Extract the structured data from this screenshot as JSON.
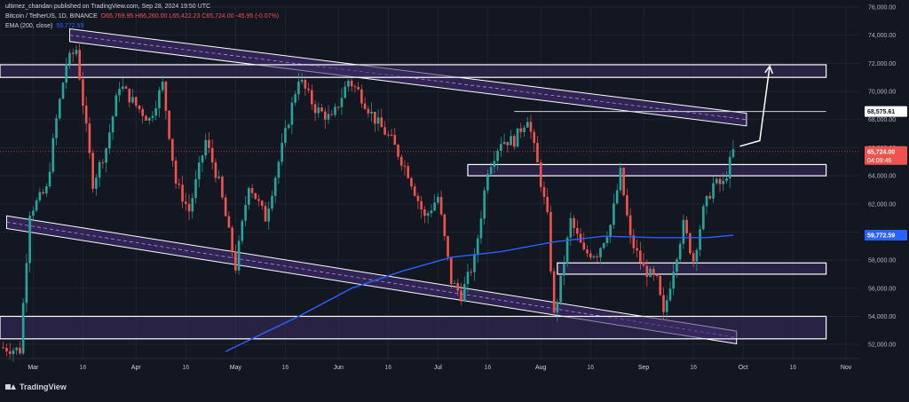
{
  "header": {
    "publisher": "ultimez_chandan published on TradingView.com, Sep 28, 2024 19:50 UTC",
    "symbol": "Bitcoin / TetherUS, 1D, BINANCE",
    "ohlc": "O65,769.95  H66,260.00  L65,422.23  C65,724.00  -45.95 (-0.07%)",
    "ema_label": "EMA (200, close)",
    "ema_value": "59,772.59"
  },
  "brand": {
    "name": "TradingView"
  },
  "colors": {
    "background": "#131722",
    "bull": "#26a69a",
    "bear": "#ef5350",
    "ema": "#2962ff",
    "zone_fill": "#3b2b63",
    "zone_stroke": "#ffffff"
  },
  "chart_data": {
    "type": "candlestick",
    "ylim": [
      51000,
      76000
    ],
    "yticks": [
      "52,000.00",
      "54,000.00",
      "56,000.00",
      "58,000.00",
      "60,000.00",
      "62,000.00",
      "64,000.00",
      "66,000.00",
      "68,000.00",
      "70,000.00",
      "72,000.00",
      "74,000.00",
      "76,000.00"
    ],
    "xticks": [
      {
        "label": "Mar",
        "date": "2024-03-01"
      },
      {
        "label": "16",
        "date": "2024-03-16"
      },
      {
        "label": "Apr",
        "date": "2024-04-01"
      },
      {
        "label": "16",
        "date": "2024-04-16"
      },
      {
        "label": "May",
        "date": "2024-05-01"
      },
      {
        "label": "16",
        "date": "2024-05-16"
      },
      {
        "label": "Jun",
        "date": "2024-06-01"
      },
      {
        "label": "16",
        "date": "2024-06-16"
      },
      {
        "label": "Jul",
        "date": "2024-07-01"
      },
      {
        "label": "16",
        "date": "2024-07-16"
      },
      {
        "label": "Aug",
        "date": "2024-08-01"
      },
      {
        "label": "16",
        "date": "2024-08-16"
      },
      {
        "label": "Sep",
        "date": "2024-09-01"
      },
      {
        "label": "16",
        "date": "2024-09-16"
      },
      {
        "label": "Oct",
        "date": "2024-10-01"
      },
      {
        "label": "16",
        "date": "2024-10-16"
      },
      {
        "label": "Nov",
        "date": "2024-11-01"
      }
    ],
    "price_path": [
      [
        "2024-02-20",
        51800
      ],
      [
        "2024-02-26",
        51600
      ],
      [
        "2024-02-29",
        61500
      ],
      [
        "2024-03-05",
        63000
      ],
      [
        "2024-03-08",
        68000
      ],
      [
        "2024-03-11",
        72000
      ],
      [
        "2024-03-14",
        73000
      ],
      [
        "2024-03-19",
        63500
      ],
      [
        "2024-03-23",
        66000
      ],
      [
        "2024-03-27",
        70500
      ],
      [
        "2024-04-01",
        69000
      ],
      [
        "2024-04-05",
        68000
      ],
      [
        "2024-04-09",
        70500
      ],
      [
        "2024-04-13",
        63500
      ],
      [
        "2024-04-17",
        61500
      ],
      [
        "2024-04-22",
        66500
      ],
      [
        "2024-04-26",
        63500
      ],
      [
        "2024-05-01",
        57500
      ],
      [
        "2024-05-05",
        63500
      ],
      [
        "2024-05-10",
        61000
      ],
      [
        "2024-05-15",
        66000
      ],
      [
        "2024-05-20",
        71000
      ],
      [
        "2024-05-25",
        68800
      ],
      [
        "2024-05-30",
        68000
      ],
      [
        "2024-06-04",
        70800
      ],
      [
        "2024-06-07",
        70000
      ],
      [
        "2024-06-12",
        68000
      ],
      [
        "2024-06-17",
        66500
      ],
      [
        "2024-06-22",
        64200
      ],
      [
        "2024-06-27",
        61000
      ],
      [
        "2024-07-01",
        62500
      ],
      [
        "2024-07-05",
        56500
      ],
      [
        "2024-07-08",
        55500
      ],
      [
        "2024-07-12",
        58000
      ],
      [
        "2024-07-16",
        64500
      ],
      [
        "2024-07-20",
        66500
      ],
      [
        "2024-07-24",
        66500
      ],
      [
        "2024-07-28",
        68200
      ],
      [
        "2024-07-31",
        64800
      ],
      [
        "2024-08-03",
        61000
      ],
      [
        "2024-08-05",
        54000
      ],
      [
        "2024-08-07",
        56500
      ],
      [
        "2024-08-10",
        60800
      ],
      [
        "2024-08-14",
        58500
      ],
      [
        "2024-08-18",
        58500
      ],
      [
        "2024-08-22",
        60500
      ],
      [
        "2024-08-25",
        64200
      ],
      [
        "2024-08-28",
        59500
      ],
      [
        "2024-09-01",
        57400
      ],
      [
        "2024-09-05",
        56500
      ],
      [
        "2024-09-07",
        54000
      ],
      [
        "2024-09-10",
        57500
      ],
      [
        "2024-09-13",
        60500
      ],
      [
        "2024-09-16",
        58000
      ],
      [
        "2024-09-19",
        61500
      ],
      [
        "2024-09-22",
        63400
      ],
      [
        "2024-09-25",
        63400
      ],
      [
        "2024-09-28",
        65724
      ]
    ],
    "ema": {
      "label": "EMA (200, close)",
      "points": [
        [
          "2024-04-28",
          51500
        ],
        [
          "2024-05-20",
          54000
        ],
        [
          "2024-06-05",
          56000
        ],
        [
          "2024-06-20",
          57200
        ],
        [
          "2024-07-05",
          58200
        ],
        [
          "2024-07-20",
          58600
        ],
        [
          "2024-08-05",
          59300
        ],
        [
          "2024-08-20",
          59700
        ],
        [
          "2024-09-05",
          59600
        ],
        [
          "2024-09-20",
          59600
        ],
        [
          "2024-09-28",
          59772.59
        ]
      ]
    },
    "channel": {
      "upper": [
        [
          "2024-03-12",
          74000
        ],
        [
          "2024-10-02",
          68000
        ]
      ],
      "lower": [
        [
          "2024-02-22",
          60700
        ],
        [
          "2024-09-29",
          52500
        ]
      ],
      "band": 900
    },
    "zones": [
      {
        "from": "2024-02-20",
        "to": "2024-10-26",
        "low": 71000,
        "high": 71900
      },
      {
        "from": "2024-07-10",
        "to": "2024-10-26",
        "low": 64000,
        "high": 64800
      },
      {
        "from": "2024-08-06",
        "to": "2024-10-26",
        "low": 57000,
        "high": 57800
      },
      {
        "from": "2024-02-20",
        "to": "2024-10-26",
        "low": 52400,
        "high": 54000
      }
    ],
    "resistance": {
      "from": "2024-07-24",
      "to": "2024-10-26",
      "price": 68575.61
    },
    "arrow": [
      [
        "2024-09-30",
        66100
      ],
      [
        "2024-10-06",
        66500
      ],
      [
        "2024-10-09",
        71800
      ]
    ],
    "labels": {
      "resistance": "68,575.61",
      "current": "65,724.00",
      "countdown": "04:09:46",
      "ema": "59,772.59"
    }
  }
}
